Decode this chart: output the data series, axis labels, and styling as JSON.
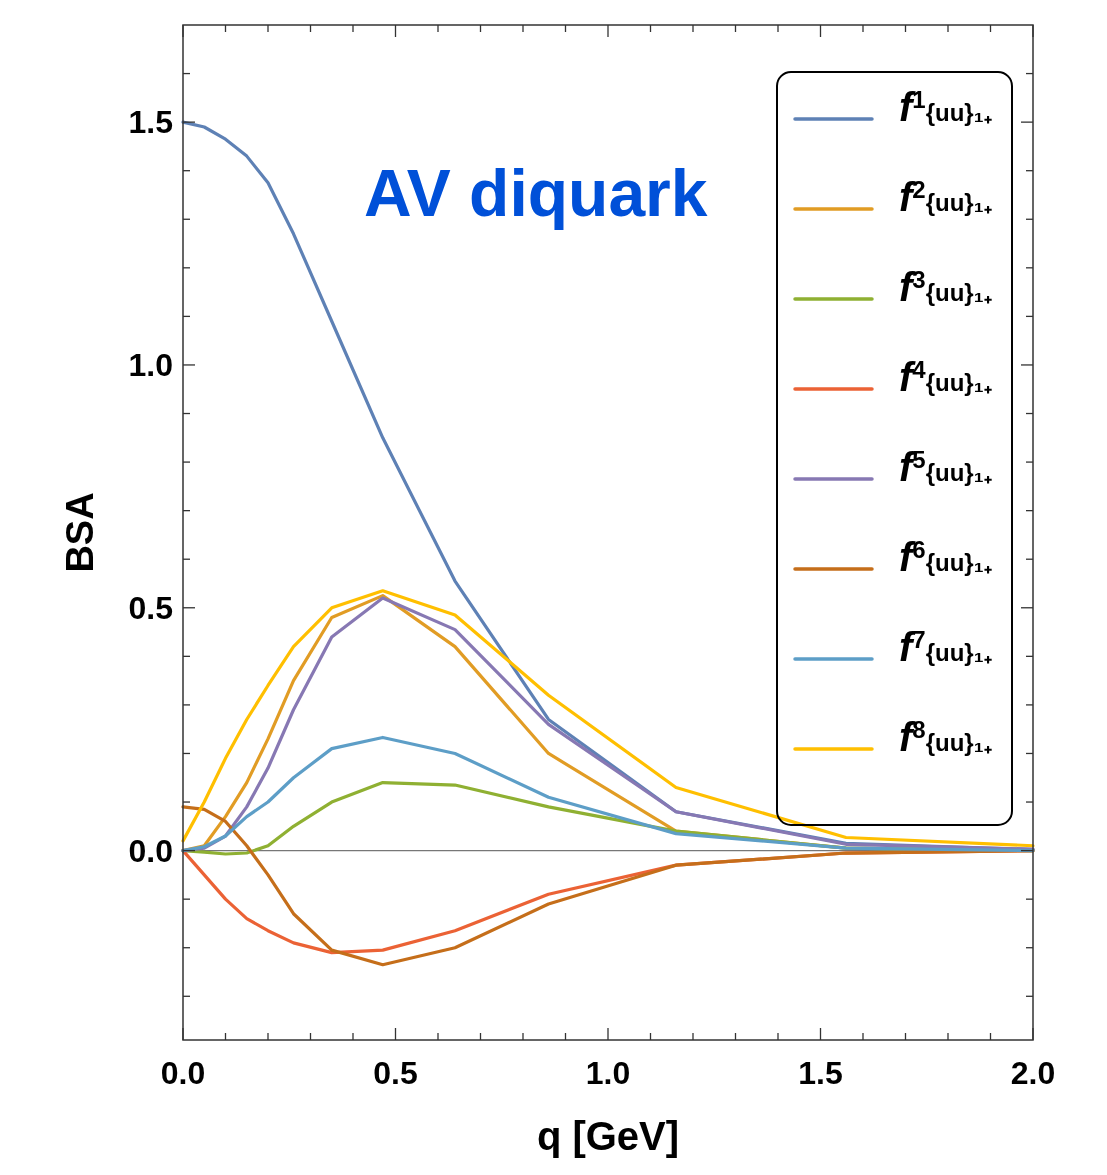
{
  "chart_data": {
    "type": "line",
    "xlabel": "q [GeV]",
    "ylabel": "BSA",
    "annotations": [
      "AV diquark"
    ],
    "x": [
      0,
      0.05,
      0.1,
      0.15,
      0.2,
      0.26,
      0.35,
      0.47,
      0.64,
      0.86,
      1.16,
      1.56,
      2.0
    ],
    "xlim": [
      0,
      2
    ],
    "ylim": [
      -0.39,
      1.7
    ],
    "xticks": [
      {
        "value": 0,
        "label": "0.0"
      },
      {
        "value": 0.1,
        "label": null
      },
      {
        "value": 0.2,
        "label": null
      },
      {
        "value": 0.3,
        "label": null
      },
      {
        "value": 0.4,
        "label": null
      },
      {
        "value": 0.5,
        "label": "0.5"
      },
      {
        "value": 0.6,
        "label": null
      },
      {
        "value": 0.7,
        "label": null
      },
      {
        "value": 0.8,
        "label": null
      },
      {
        "value": 0.9,
        "label": null
      },
      {
        "value": 1.0,
        "label": "1.0"
      },
      {
        "value": 1.1,
        "label": null
      },
      {
        "value": 1.2,
        "label": null
      },
      {
        "value": 1.3,
        "label": null
      },
      {
        "value": 1.4,
        "label": null
      },
      {
        "value": 1.5,
        "label": "1.5"
      },
      {
        "value": 1.6,
        "label": null
      },
      {
        "value": 1.7,
        "label": null
      },
      {
        "value": 1.8,
        "label": null
      },
      {
        "value": 1.9,
        "label": null
      },
      {
        "value": 2.0,
        "label": "2.0"
      }
    ],
    "yticks": [
      {
        "value": -0.3,
        "label": null
      },
      {
        "value": -0.2,
        "label": null
      },
      {
        "value": -0.1,
        "label": null
      },
      {
        "value": 0,
        "label": "0.0"
      },
      {
        "value": 0.1,
        "label": null
      },
      {
        "value": 0.2,
        "label": null
      },
      {
        "value": 0.3,
        "label": null
      },
      {
        "value": 0.4,
        "label": null
      },
      {
        "value": 0.5,
        "label": "0.5"
      },
      {
        "value": 0.6,
        "label": null
      },
      {
        "value": 0.7,
        "label": null
      },
      {
        "value": 0.8,
        "label": null
      },
      {
        "value": 0.9,
        "label": null
      },
      {
        "value": 1.0,
        "label": "1.0"
      },
      {
        "value": 1.1,
        "label": null
      },
      {
        "value": 1.2,
        "label": null
      },
      {
        "value": 1.3,
        "label": null
      },
      {
        "value": 1.4,
        "label": null
      },
      {
        "value": 1.5,
        "label": "1.5"
      },
      {
        "value": 1.6,
        "label": null
      }
    ],
    "ref_lines": [
      {
        "axis": "y",
        "value": 0,
        "color": "#777777"
      }
    ],
    "legend": "top right",
    "grid": false,
    "marker": "none",
    "line_style": "solid",
    "series": [
      {
        "name": "f$^{1}${uu}₁₊",
        "color": "#5e81b5",
        "values": [
          1.5,
          1.49,
          1.465,
          1.43,
          1.375,
          1.27,
          1.09,
          0.85,
          0.555,
          0.27,
          0.08,
          0.015,
          0.002
        ]
      },
      {
        "name": "f$^{2}${uu}₁₊",
        "color": "#e19c24",
        "values": [
          0,
          0.01,
          0.07,
          0.14,
          0.23,
          0.35,
          0.48,
          0.525,
          0.42,
          0.2,
          0.04,
          0.005,
          0
        ]
      },
      {
        "name": "f$^{3}${uu}₁₊",
        "color": "#8fb032",
        "values": [
          0,
          -0.003,
          -0.007,
          -0.005,
          0.01,
          0.05,
          0.1,
          0.14,
          0.135,
          0.09,
          0.04,
          0.005,
          0
        ]
      },
      {
        "name": "f$^{4}${uu}₁₊",
        "color": "#eb6235",
        "values": [
          0,
          -0.05,
          -0.1,
          -0.14,
          -0.165,
          -0.19,
          -0.21,
          -0.205,
          -0.165,
          -0.09,
          -0.03,
          -0.005,
          0
        ]
      },
      {
        "name": "f$^{5}${uu}₁₊",
        "color": "#8778b3",
        "values": [
          0,
          0.005,
          0.03,
          0.09,
          0.17,
          0.29,
          0.44,
          0.52,
          0.455,
          0.26,
          0.08,
          0.013,
          0.003
        ]
      },
      {
        "name": "f$^{6}${uu}₁₊",
        "color": "#c56e1a",
        "values": [
          0.09,
          0.085,
          0.06,
          0.01,
          -0.05,
          -0.13,
          -0.205,
          -0.235,
          -0.2,
          -0.11,
          -0.03,
          -0.005,
          0
        ]
      },
      {
        "name": "f$^{7}${uu}₁₊",
        "color": "#5d9ec7",
        "values": [
          0,
          0.008,
          0.03,
          0.07,
          0.1,
          0.15,
          0.21,
          0.233,
          0.2,
          0.11,
          0.035,
          0.005,
          0
        ]
      },
      {
        "name": "f$^{8}${uu}₁₊",
        "color": "#ffbf00",
        "values": [
          0.02,
          0.1,
          0.19,
          0.27,
          0.34,
          0.42,
          0.5,
          0.535,
          0.485,
          0.32,
          0.13,
          0.027,
          0.01
        ]
      }
    ]
  }
}
